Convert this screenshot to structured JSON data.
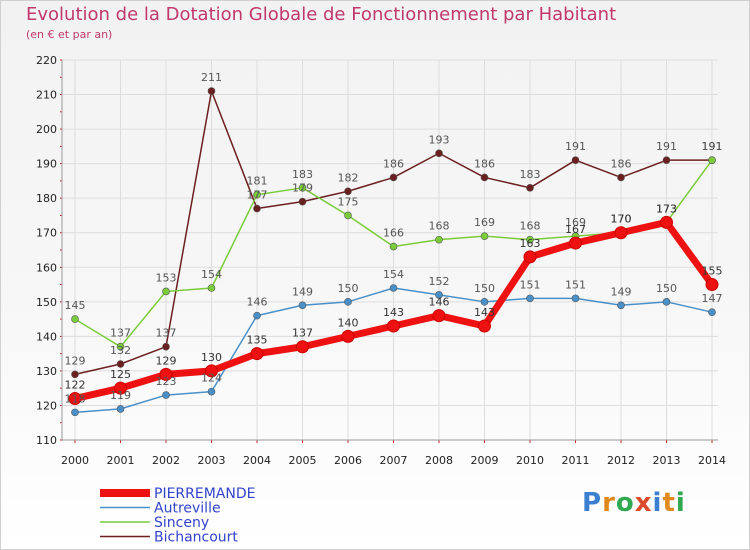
{
  "header": {
    "title": "Evolution de la Dotation Globale de Fonctionnement par Habitant",
    "subtitle": "(en € et par an)"
  },
  "logo": {
    "text": "Proxiti",
    "letter_colors": [
      "#3a7fd0",
      "#e08a1e",
      "#2fa84f",
      "#d94b2b",
      "#3a7fd0",
      "#e08a1e",
      "#2fa84f"
    ]
  },
  "chart_data": {
    "type": "line",
    "title": "Evolution de la Dotation Globale de Fonctionnement par Habitant",
    "subtitle": "(en € et par an)",
    "xlabel": "",
    "ylabel": "",
    "x": [
      "2000",
      "2001",
      "2002",
      "2003",
      "2004",
      "2005",
      "2006",
      "2007",
      "2008",
      "2009",
      "2010",
      "2011",
      "2012",
      "2013",
      "2014"
    ],
    "ylim": [
      110,
      220
    ],
    "yticks": [
      110,
      120,
      130,
      140,
      150,
      160,
      170,
      180,
      190,
      200,
      210,
      220
    ],
    "grid": true,
    "legend": "bottom-left",
    "series": [
      {
        "name": "Bichancourt",
        "color": "#6b1f1f",
        "values": [
          129,
          132,
          137,
          211,
          177,
          179,
          182,
          186,
          193,
          186,
          183,
          191,
          186,
          191,
          191
        ],
        "labels": [
          "129",
          "132",
          "137",
          "211",
          "177",
          "179",
          "182",
          "186",
          "193",
          "186",
          "183",
          "191",
          "186",
          "191",
          "191"
        ]
      },
      {
        "name": "Sinceny",
        "color": "#7acc3a",
        "values": [
          145,
          137,
          153,
          154,
          181,
          183,
          175,
          166,
          168,
          169,
          168,
          169,
          170,
          173,
          191
        ],
        "labels": [
          "145",
          "137",
          "153",
          "154",
          "181",
          "183",
          "175",
          "166",
          "168",
          "169",
          "168",
          "169",
          "170",
          "173",
          "191"
        ]
      },
      {
        "name": "Autreville",
        "color": "#4a90c8",
        "values": [
          118,
          119,
          123,
          124,
          146,
          149,
          150,
          154,
          152,
          150,
          151,
          151,
          149,
          150,
          147
        ],
        "labels": [
          "118",
          "119",
          "123",
          "124",
          "146",
          "149",
          "150",
          "154",
          "152",
          "150",
          "151",
          "151",
          "149",
          "150",
          "147"
        ]
      },
      {
        "name": "PIERREMANDE",
        "color": "#ee1111",
        "values": [
          122,
          125,
          129,
          130,
          135,
          137,
          140,
          143,
          146,
          143,
          163,
          167,
          170,
          173,
          155
        ],
        "labels": [
          "122",
          "125",
          "129",
          "130",
          "135",
          "137",
          "140",
          "143",
          "146",
          "143",
          "163",
          "167",
          "170",
          "173",
          "155"
        ]
      }
    ],
    "legend_entries": [
      {
        "name": "PIERREMANDE",
        "color": "#ee1111"
      },
      {
        "name": "Autreville",
        "color": "#4a90c8"
      },
      {
        "name": "Sinceny",
        "color": "#7acc3a"
      },
      {
        "name": "Bichancourt",
        "color": "#6b1f1f"
      }
    ]
  }
}
